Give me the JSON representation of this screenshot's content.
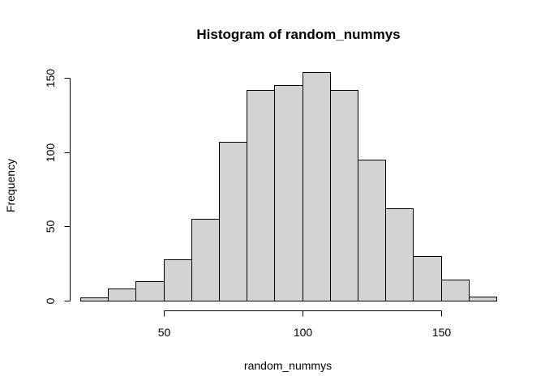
{
  "chart_data": {
    "type": "bar",
    "title": "Histogram of random_nummys",
    "xlabel": "random_nummys",
    "ylabel": "Frequency",
    "bin_edges": [
      20,
      30,
      40,
      50,
      60,
      70,
      80,
      90,
      100,
      110,
      120,
      130,
      140,
      150,
      160,
      170
    ],
    "values": [
      2,
      8,
      13,
      28,
      55,
      107,
      142,
      145,
      154,
      142,
      95,
      62,
      30,
      14,
      3
    ],
    "x_ticks": [
      50,
      100,
      150
    ],
    "y_ticks": [
      0,
      50,
      100,
      150
    ],
    "xlim": [
      20,
      170
    ],
    "ylim": [
      0,
      154
    ],
    "bar_color": "#d3d3d3",
    "edge_color": "#000000",
    "grid": false,
    "legend": "none"
  }
}
